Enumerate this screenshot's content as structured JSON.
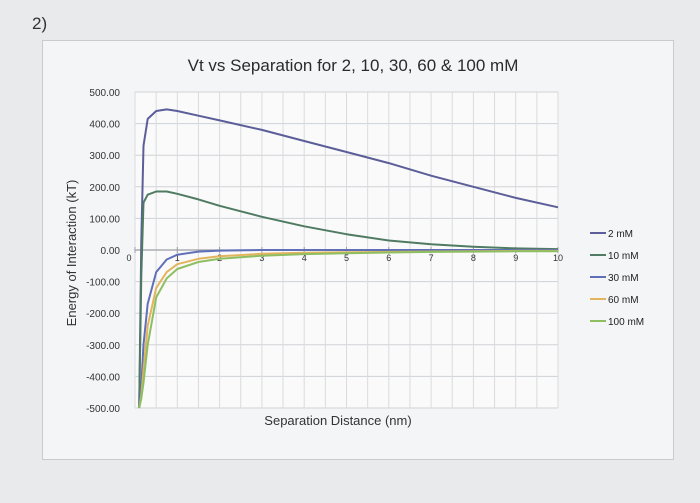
{
  "question_label": "2)",
  "chart_data": {
    "type": "line",
    "title": "Vt vs Separation for 2, 10, 30, 60 & 100 mM",
    "xlabel": "Separation Distance (nm)",
    "ylabel": "Energy of Interaction (kT)",
    "xlim": [
      0,
      10
    ],
    "ylim": [
      -500,
      500
    ],
    "x_ticks": [
      "0",
      "1",
      "2",
      "3",
      "4",
      "5",
      "6",
      "7",
      "8",
      "9",
      "10"
    ],
    "y_ticks": [
      "500.00",
      "400.00",
      "300.00",
      "200.00",
      "100.00",
      "0.00",
      "-100.00",
      "-200.00",
      "-300.00",
      "-400.00",
      "-500.00"
    ],
    "y_tick_values": [
      500,
      400,
      300,
      200,
      100,
      0,
      -100,
      -200,
      -300,
      -400,
      -500
    ],
    "grid": true,
    "legend_position": "right",
    "x": [
      0.1,
      0.15,
      0.2,
      0.3,
      0.5,
      0.75,
      1,
      1.5,
      2,
      3,
      4,
      5,
      6,
      7,
      8,
      9,
      10
    ],
    "series": [
      {
        "name": "2 mM",
        "color": "#5b5e98",
        "values": [
          -500,
          30,
          330,
          415,
          440,
          445,
          440,
          425,
          410,
          380,
          345,
          310,
          275,
          235,
          200,
          165,
          135
        ]
      },
      {
        "name": "10 mM",
        "color": "#4f7b62",
        "values": [
          -500,
          -80,
          150,
          175,
          185,
          185,
          178,
          160,
          140,
          105,
          75,
          50,
          30,
          18,
          10,
          5,
          3
        ]
      },
      {
        "name": "30 mM",
        "color": "#5f70b8",
        "values": [
          -500,
          -430,
          -300,
          -170,
          -70,
          -30,
          -15,
          -5,
          -2,
          0,
          0,
          0,
          0,
          0,
          0,
          0,
          0
        ]
      },
      {
        "name": "60 mM",
        "color": "#e3b45c",
        "values": [
          -500,
          -460,
          -380,
          -240,
          -120,
          -70,
          -45,
          -28,
          -20,
          -12,
          -9,
          -7,
          -6,
          -5,
          -4,
          -3,
          -3
        ]
      },
      {
        "name": "100 mM",
        "color": "#8dbf62",
        "values": [
          -500,
          -470,
          -420,
          -300,
          -150,
          -90,
          -60,
          -38,
          -28,
          -18,
          -13,
          -10,
          -8,
          -6,
          -5,
          -4,
          -4
        ]
      }
    ]
  }
}
